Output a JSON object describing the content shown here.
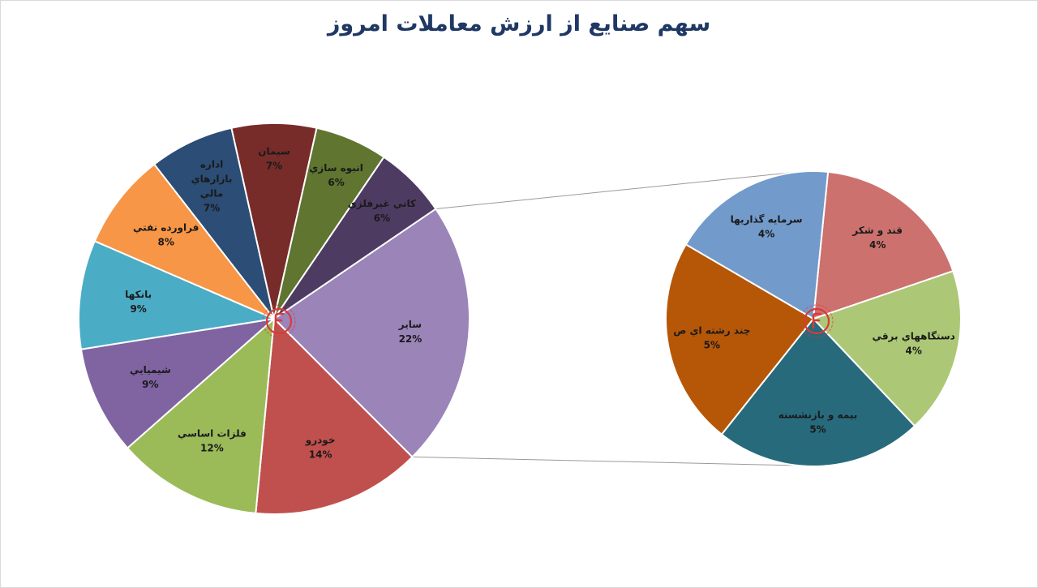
{
  "chart_data": {
    "type": "pie",
    "variant": "pie-of-pie",
    "title": "سهم صنایع از ارزش معاملات امروز",
    "main_pie": {
      "slices": [
        {
          "name": "سایر",
          "value": 22,
          "label": "22%",
          "color": "#9a84b8"
        },
        {
          "name": "خودرو",
          "value": 14,
          "label": "14%",
          "color": "#c0504d"
        },
        {
          "name": "فلزات اساسي",
          "value": 12,
          "label": "12%",
          "color": "#9bbb59"
        },
        {
          "name": "شیمیایي",
          "value": 9,
          "label": "9%",
          "color": "#8064a2"
        },
        {
          "name": "بانکها",
          "value": 9,
          "label": "9%",
          "color": "#4bacc6"
        },
        {
          "name": "فراورده نفتي",
          "value": 8,
          "label": "8%",
          "color": "#f79646"
        },
        {
          "name": "اداره بازارهاي مالي",
          "value": 7,
          "label": "7%",
          "color": "#2c4d75"
        },
        {
          "name": "سیمان",
          "value": 7,
          "label": "7%",
          "color": "#772c2a"
        },
        {
          "name": "انبوه سازي",
          "value": 6,
          "label": "6%",
          "color": "#5f7530"
        },
        {
          "name": "کاني غیرفلزي",
          "value": 6,
          "label": "6%",
          "color": "#4d3b62"
        }
      ]
    },
    "secondary_pie": {
      "slices": [
        {
          "name": "قند و شکر",
          "value": 4,
          "label": "4%",
          "color": "#cc716e"
        },
        {
          "name": "دستگاههاي برقي",
          "value": 4,
          "label": "4%",
          "color": "#acc876"
        },
        {
          "name": "بیمه و بازنشسته",
          "value": 5,
          "label": "5%",
          "color": "#276a7c"
        },
        {
          "name": "چند رشته اي ص",
          "value": 5,
          "label": "5%",
          "color": "#b65708"
        },
        {
          "name": "سرمایه گذاریها",
          "value": 4,
          "label": "4%",
          "color": "#729acb"
        }
      ]
    }
  }
}
